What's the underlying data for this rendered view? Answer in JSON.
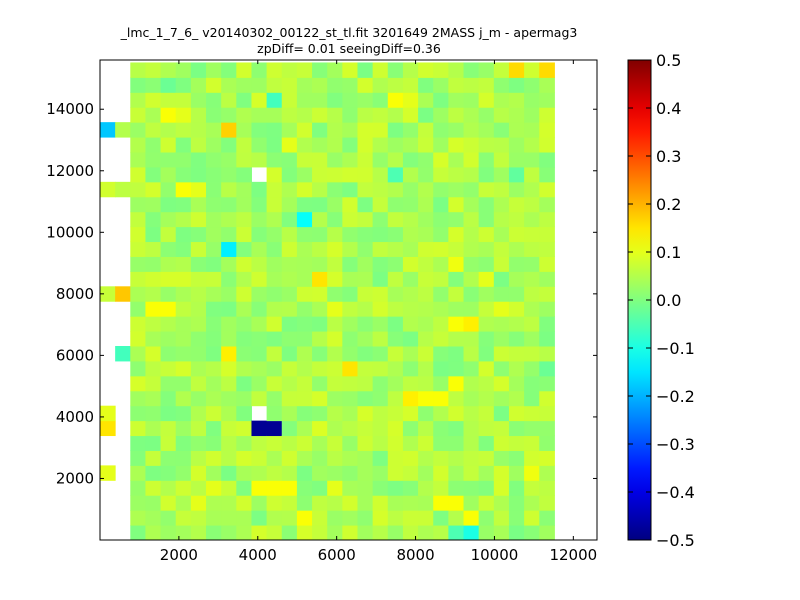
{
  "chart_data": {
    "type": "heatmap",
    "title_line1": "_lmc_1_7_6_ v20140302_00122_st_tl.fit 3201649 2MASS j_m - apermag3",
    "title_line2": "zpDiff= 0.01 seeingDiff=0.36",
    "xlabel": "",
    "ylabel": "",
    "xlim": [
      0,
      12600
    ],
    "ylim": [
      0,
      15600
    ],
    "x_ticks": [
      2000,
      4000,
      6000,
      8000,
      10000,
      12000
    ],
    "y_ticks": [
      2000,
      4000,
      6000,
      8000,
      10000,
      12000,
      14000
    ],
    "cell_width": 384,
    "cell_height": 485,
    "grid_x0": 0,
    "grid_y0": 0,
    "ncols": 33,
    "nrows": 32,
    "colorbar": {
      "vmin": -0.5,
      "vmax": 0.5,
      "ticks": [
        "0.5",
        "0.4",
        "0.3",
        "0.2",
        "0.1",
        "0.0",
        "−0.1",
        "−0.2",
        "−0.3",
        "−0.4",
        "−0.5"
      ],
      "colormap": "jet"
    },
    "background_value": 0.04,
    "column_range": [
      2,
      29
    ],
    "row_range": [
      0,
      31
    ],
    "missing_cells": [
      [
        10,
        8
      ],
      [
        10,
        24
      ]
    ],
    "special_cells": [
      [
        0,
        27,
        -0.18
      ],
      [
        1,
        27,
        0.05
      ],
      [
        28,
        27,
        0.04
      ],
      [
        27,
        26,
        0.03
      ],
      [
        28,
        26,
        0.05
      ],
      [
        0,
        23,
        0.08
      ],
      [
        1,
        23,
        0.06
      ],
      [
        29,
        23,
        0.08
      ],
      [
        29,
        21,
        0.06
      ],
      [
        29,
        20,
        0.07
      ],
      [
        0,
        16,
        0.07
      ],
      [
        1,
        16,
        0.18
      ],
      [
        28,
        16,
        0.06
      ],
      [
        1,
        12,
        -0.06
      ],
      [
        29,
        11,
        -0.02
      ],
      [
        0,
        8,
        0.1
      ],
      [
        0,
        7,
        0.15
      ],
      [
        28,
        7,
        0.02
      ],
      [
        0,
        4,
        0.1
      ],
      [
        28,
        4,
        0.11
      ],
      [
        29,
        3,
        0.06
      ],
      [
        10,
        7,
        -0.48
      ],
      [
        11,
        7,
        -0.48
      ],
      [
        8,
        27,
        0.17
      ],
      [
        8,
        12,
        0.14
      ],
      [
        16,
        11,
        0.15
      ],
      [
        4,
        30,
        -0.02
      ],
      [
        11,
        29,
        -0.06
      ],
      [
        27,
        31,
        0.16
      ],
      [
        29,
        31,
        0.16
      ],
      [
        13,
        27,
        0.08
      ],
      [
        12,
        26,
        0.1
      ],
      [
        23,
        10,
        0.12
      ],
      [
        14,
        7,
        0.09
      ],
      [
        8,
        19,
        -0.14
      ],
      [
        13,
        21,
        -0.12
      ],
      [
        19,
        24,
        -0.05
      ],
      [
        27,
        24,
        -0.03
      ],
      [
        24,
        25,
        0.08
      ],
      [
        24,
        13,
        0.05
      ],
      [
        6,
        2,
        0.1
      ],
      [
        22,
        2,
        0.12
      ],
      [
        23,
        2,
        0.12
      ],
      [
        24,
        1,
        0.12
      ],
      [
        23,
        0,
        -0.05
      ],
      [
        24,
        0,
        -0.1
      ],
      [
        5,
        23,
        0.12
      ],
      [
        6,
        23,
        0.1
      ],
      [
        7,
        3,
        0.1
      ],
      [
        12,
        3,
        0.12
      ],
      [
        10,
        3,
        0.12
      ],
      [
        11,
        3,
        0.12
      ],
      [
        9,
        2,
        0.08
      ],
      [
        13,
        1,
        0.12
      ],
      [
        15,
        3,
        0.1
      ],
      [
        20,
        9,
        0.14
      ],
      [
        21,
        9,
        0.12
      ],
      [
        22,
        9,
        0.12
      ],
      [
        23,
        14,
        0.12
      ],
      [
        24,
        14,
        0.14
      ],
      [
        23,
        18,
        0.11
      ],
      [
        5,
        21,
        0.05
      ],
      [
        2,
        20,
        0.08
      ],
      [
        3,
        15,
        0.12
      ],
      [
        4,
        15,
        0.12
      ],
      [
        14,
        17,
        0.15
      ],
      [
        15,
        15,
        0.1
      ],
      [
        25,
        17,
        0.1
      ],
      [
        26,
        15,
        0.1
      ],
      [
        27,
        15,
        0.08
      ],
      [
        4,
        28,
        0.12
      ],
      [
        5,
        28,
        0.1
      ],
      [
        19,
        29,
        0.12
      ],
      [
        20,
        29,
        0.1
      ]
    ]
  }
}
